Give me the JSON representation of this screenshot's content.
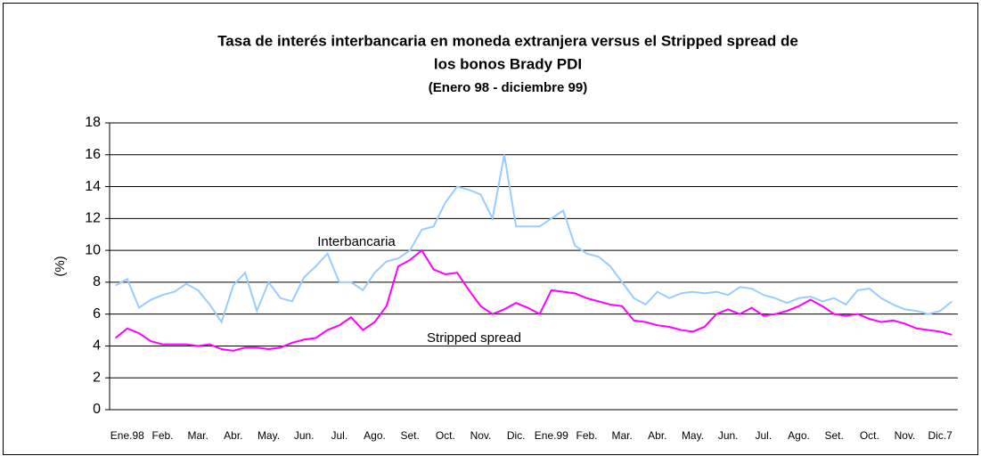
{
  "chart_data": {
    "type": "line",
    "title": [
      "Tasa de interés interbancaria en moneda extranjera versus el Stripped spread de",
      "los bonos Brady PDI"
    ],
    "subtitle": "(Enero 98 - diciembre 99)",
    "y_label": "(%)",
    "categories": [
      null,
      "Ene.98",
      null,
      null,
      "Feb.",
      null,
      null,
      "Mar.",
      null,
      null,
      "Abr.",
      null,
      null,
      "May.",
      null,
      null,
      "Jun.",
      null,
      null,
      "Jul.",
      null,
      null,
      "Ago.",
      null,
      null,
      "Set.",
      null,
      null,
      "Oct.",
      null,
      null,
      "Nov.",
      null,
      null,
      "Dic.",
      null,
      null,
      "Ene.99",
      null,
      null,
      "Feb.",
      null,
      null,
      "Mar.",
      null,
      null,
      "Abr.",
      null,
      null,
      "May.",
      null,
      null,
      "Jun.",
      null,
      null,
      "Jul.",
      null,
      null,
      "Ago.",
      null,
      null,
      "Set.",
      null,
      null,
      "Oct.",
      null,
      null,
      "Nov.",
      null,
      null,
      "Dic.7",
      null
    ],
    "series": [
      {
        "name": "Interbancaria",
        "color": "#99ccff",
        "values": [
          7.8,
          8.2,
          6.4,
          6.9,
          7.2,
          7.4,
          7.9,
          7.5,
          6.6,
          5.5,
          7.8,
          8.6,
          6.2,
          8.0,
          7.0,
          6.8,
          8.3,
          9.0,
          9.8,
          8.0,
          8.0,
          7.5,
          8.6,
          9.3,
          9.5,
          10.0,
          11.3,
          11.5,
          13.0,
          14.0,
          13.8,
          13.5,
          12.0,
          16.0,
          11.5,
          11.5,
          11.5,
          12.0,
          12.5,
          10.3,
          9.8,
          9.6,
          9.0,
          8.0,
          7.0,
          6.6,
          7.4,
          7.0,
          7.3,
          7.4,
          7.3,
          7.4,
          7.2,
          7.7,
          7.6,
          7.2,
          7.0,
          6.7,
          7.0,
          7.1,
          6.8,
          7.0,
          6.6,
          7.5,
          7.6,
          7.0,
          6.6,
          6.3,
          6.2,
          6.0,
          6.2,
          6.8
        ]
      },
      {
        "name": "Stripped spread",
        "color": "#ff00ff",
        "values": [
          4.5,
          5.1,
          4.8,
          4.3,
          4.1,
          4.1,
          4.1,
          4.0,
          4.1,
          3.8,
          3.7,
          3.9,
          3.9,
          3.8,
          3.9,
          4.2,
          4.4,
          4.5,
          5.0,
          5.3,
          5.8,
          5.0,
          5.5,
          6.5,
          9.0,
          9.4,
          10.0,
          8.8,
          8.5,
          8.6,
          7.5,
          6.5,
          6.0,
          6.3,
          6.7,
          6.4,
          6.0,
          7.5,
          7.4,
          7.3,
          7.0,
          6.8,
          6.6,
          6.5,
          5.6,
          5.5,
          5.3,
          5.2,
          5.0,
          4.9,
          5.2,
          6.0,
          6.3,
          6.0,
          6.4,
          5.9,
          6.0,
          6.2,
          6.5,
          6.9,
          6.5,
          6.0,
          5.9,
          6.0,
          5.7,
          5.5,
          5.6,
          5.4,
          5.1,
          5.0,
          4.9,
          4.7
        ]
      }
    ],
    "ylim": [
      0,
      18
    ],
    "yticks": [
      0,
      2,
      4,
      6,
      8,
      10,
      12,
      14,
      16,
      18
    ],
    "grid": true
  }
}
